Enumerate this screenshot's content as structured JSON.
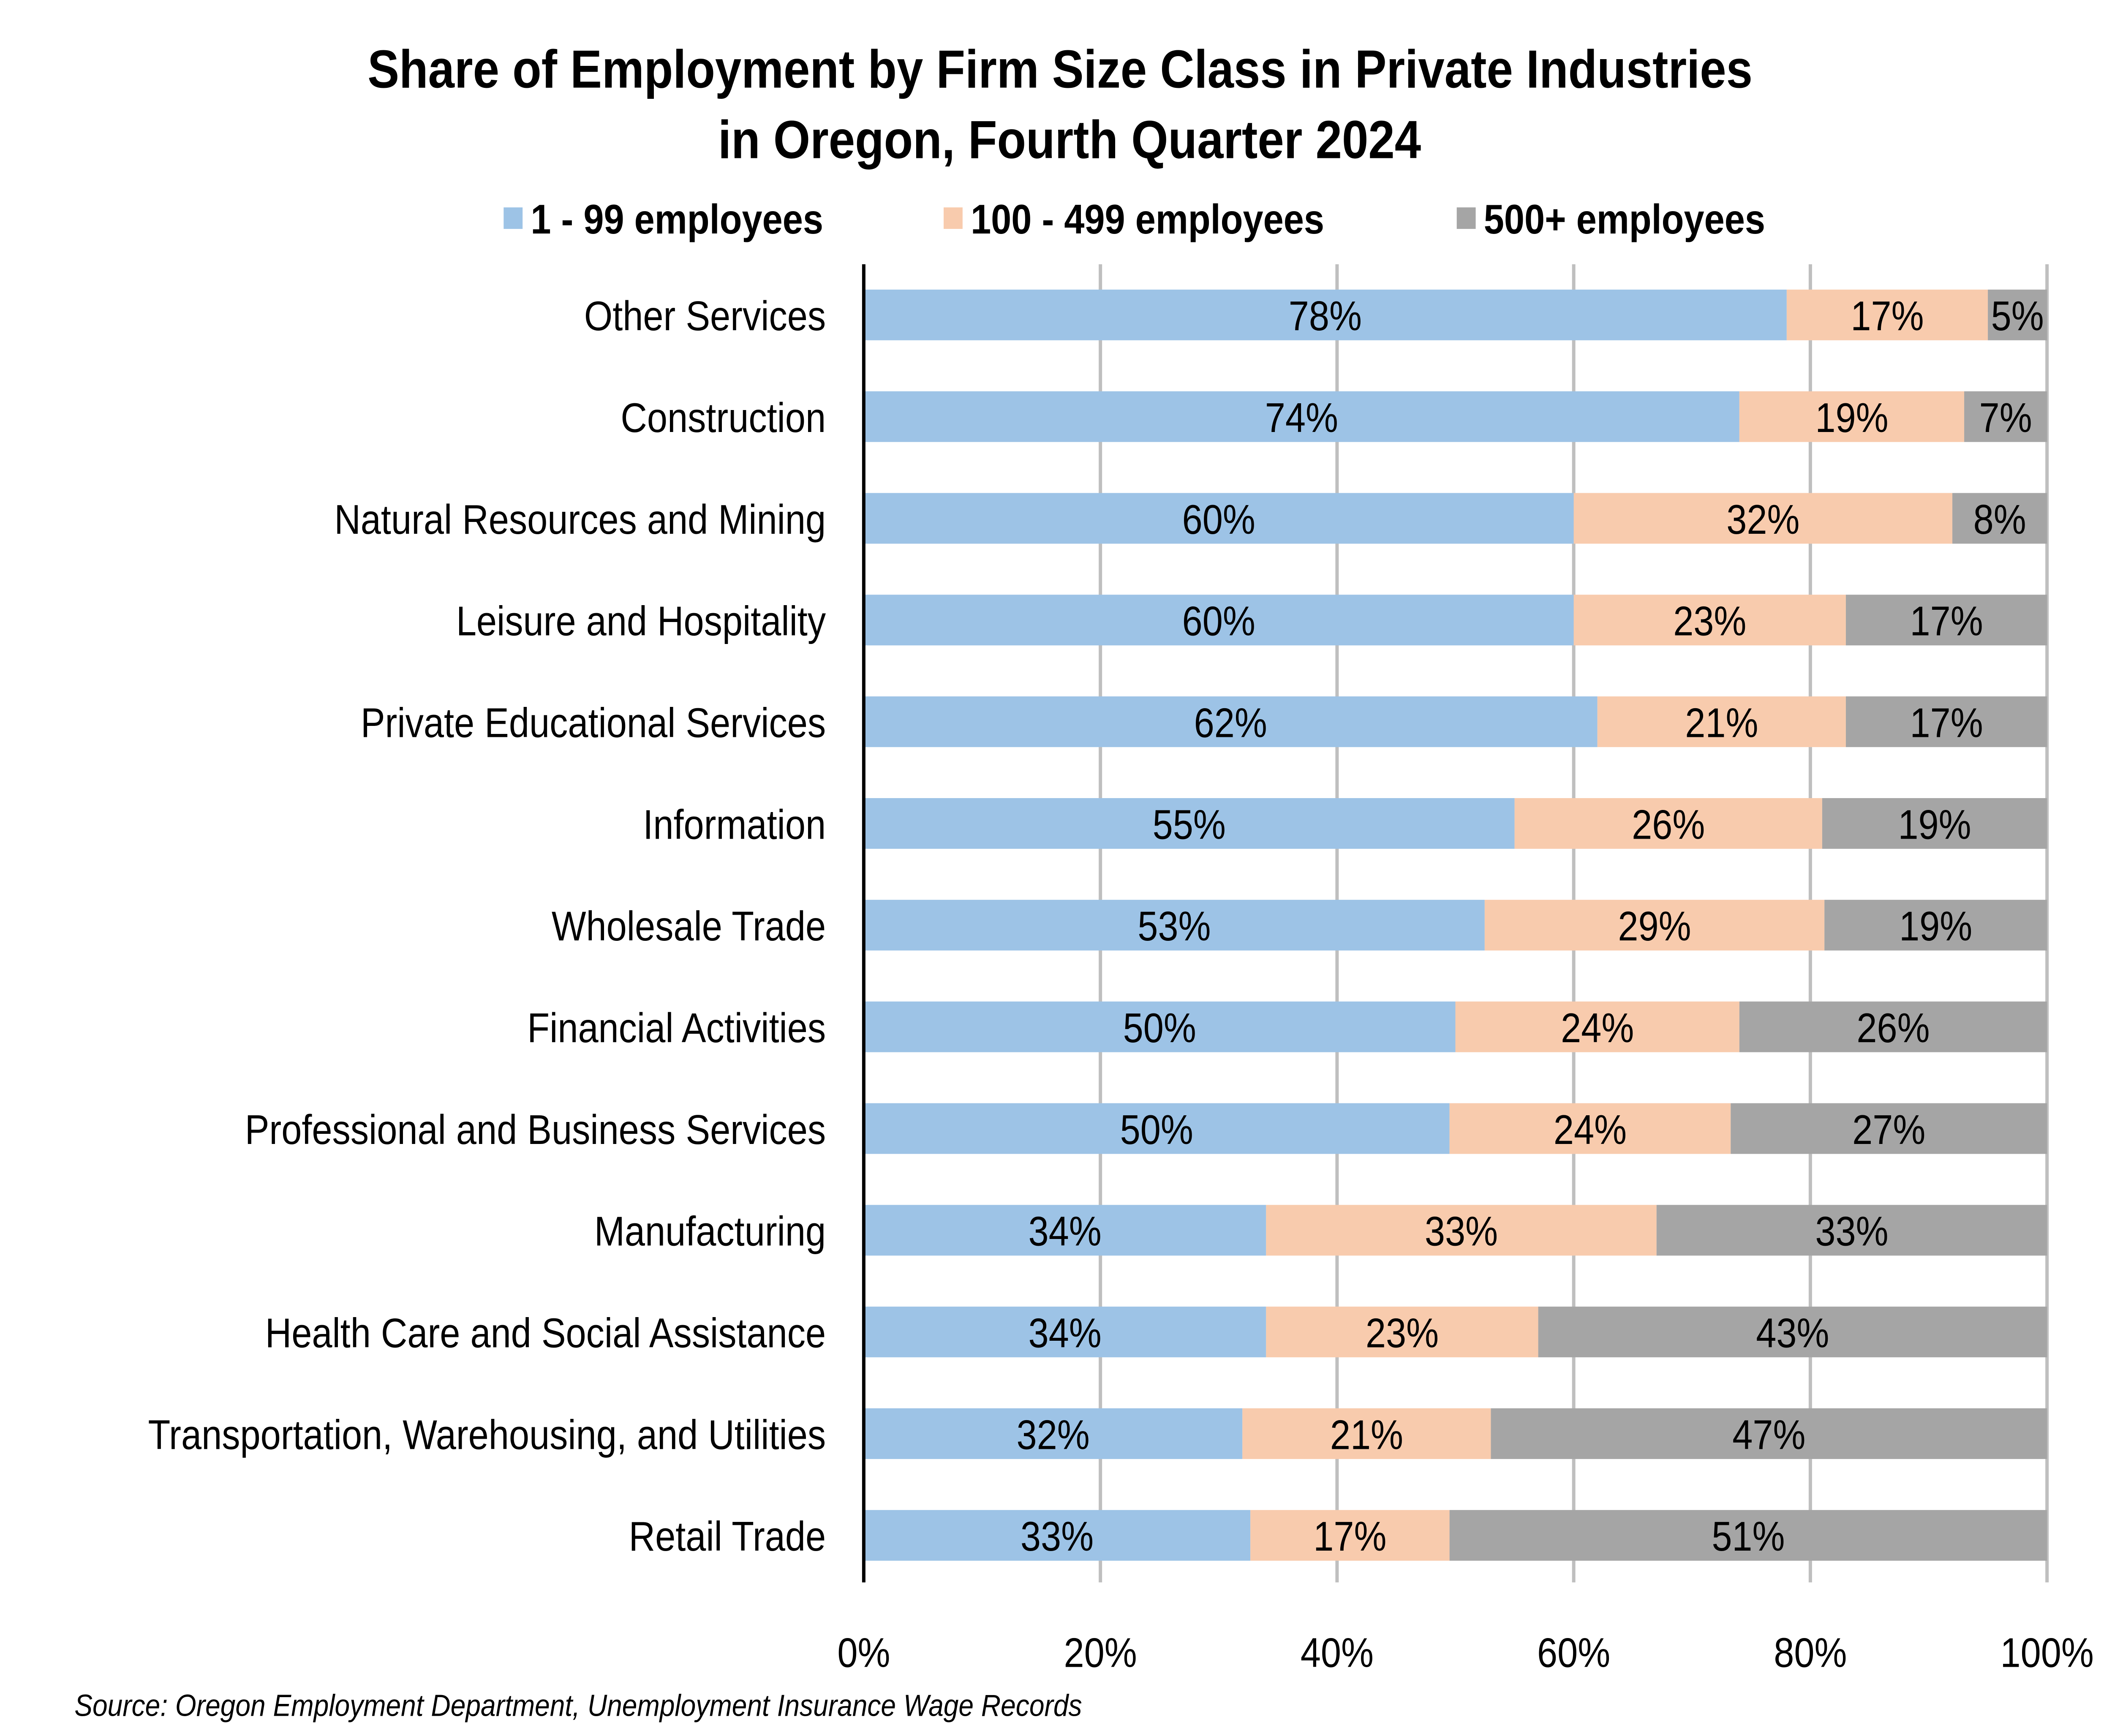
{
  "chart_data": {
    "type": "bar",
    "orientation": "horizontal",
    "stacked": "percent",
    "title": [
      "Share of Employment by Firm Size Class in Private Industries",
      "in Oregon, Fourth Quarter 2024"
    ],
    "categories": [
      "Other Services",
      "Construction",
      "Natural Resources and Mining",
      "Leisure and Hospitality",
      "Private Educational Services",
      "Information",
      "Wholesale Trade",
      "Financial Activities",
      "Professional and Business Services",
      "Manufacturing",
      "Health Care and Social Assistance",
      "Transportation, Warehousing, and Utilities",
      "Retail Trade"
    ],
    "series": [
      {
        "name": "1 - 99 employees",
        "color": "#9dc3e6",
        "values": [
          78,
          74,
          60,
          60,
          62,
          55,
          53,
          50,
          50,
          34,
          34,
          32,
          33
        ]
      },
      {
        "name": "100 - 499 employees",
        "color": "#f8cbad",
        "values": [
          17,
          19,
          32,
          23,
          21,
          26,
          29,
          24,
          24,
          33,
          23,
          21,
          17
        ]
      },
      {
        "name": "500+ employees",
        "color": "#a5a5a5",
        "values": [
          5,
          7,
          8,
          17,
          17,
          19,
          19,
          26,
          27,
          33,
          43,
          47,
          51
        ]
      }
    ],
    "xlim": [
      0,
      100
    ],
    "xticks": [
      "0%",
      "20%",
      "40%",
      "60%",
      "80%",
      "100%"
    ],
    "grid": true,
    "legend_position": "top",
    "data_label_suffix": "%",
    "source": "Source: Oregon Employment Department, Unemployment Insurance Wage Records"
  }
}
